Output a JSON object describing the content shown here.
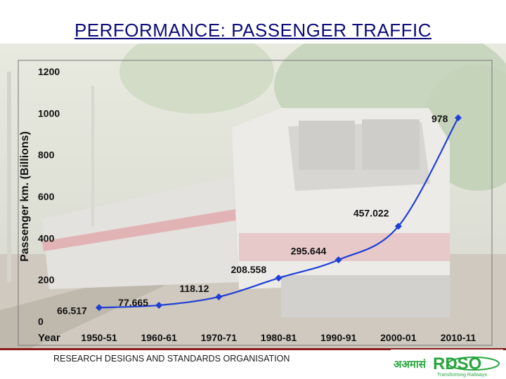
{
  "slide": {
    "title": "PERFORMANCE: PASSENGER TRAFFIC",
    "footer": "RESEARCH DESIGNS AND STANDARDS ORGANISATION",
    "logo_text": "RDSO",
    "logo_hindi": "अअमासं",
    "logo_tagline": "Transforming Railways"
  },
  "colors": {
    "series": "#1f3fd6",
    "title": "#0a0a7a",
    "footer_rule": "#8b1a1a",
    "logo_green": "#2aa640"
  },
  "chart_data": {
    "type": "line",
    "title": "",
    "xlabel": "Year",
    "ylabel": "Passenger km. (Billions)",
    "categories": [
      "1950-51",
      "1960-61",
      "1970-71",
      "1980-81",
      "1990-91",
      "2000-01",
      "2010-11"
    ],
    "series": [
      {
        "values": [
          66.517,
          77.665,
          118.12,
          208.558,
          295.644,
          457.022,
          978
        ]
      }
    ],
    "data_labels": [
      "66.517",
      "77.665",
      "118.12",
      "208.558",
      "295.644",
      "457.022",
      "978"
    ],
    "yticks": [
      "0",
      "200",
      "400",
      "600",
      "800",
      "1000",
      "1200"
    ],
    "ylim": [
      0,
      1200
    ],
    "grid": false,
    "legend": "none",
    "background": "photo of electric locomotive WAP7"
  }
}
